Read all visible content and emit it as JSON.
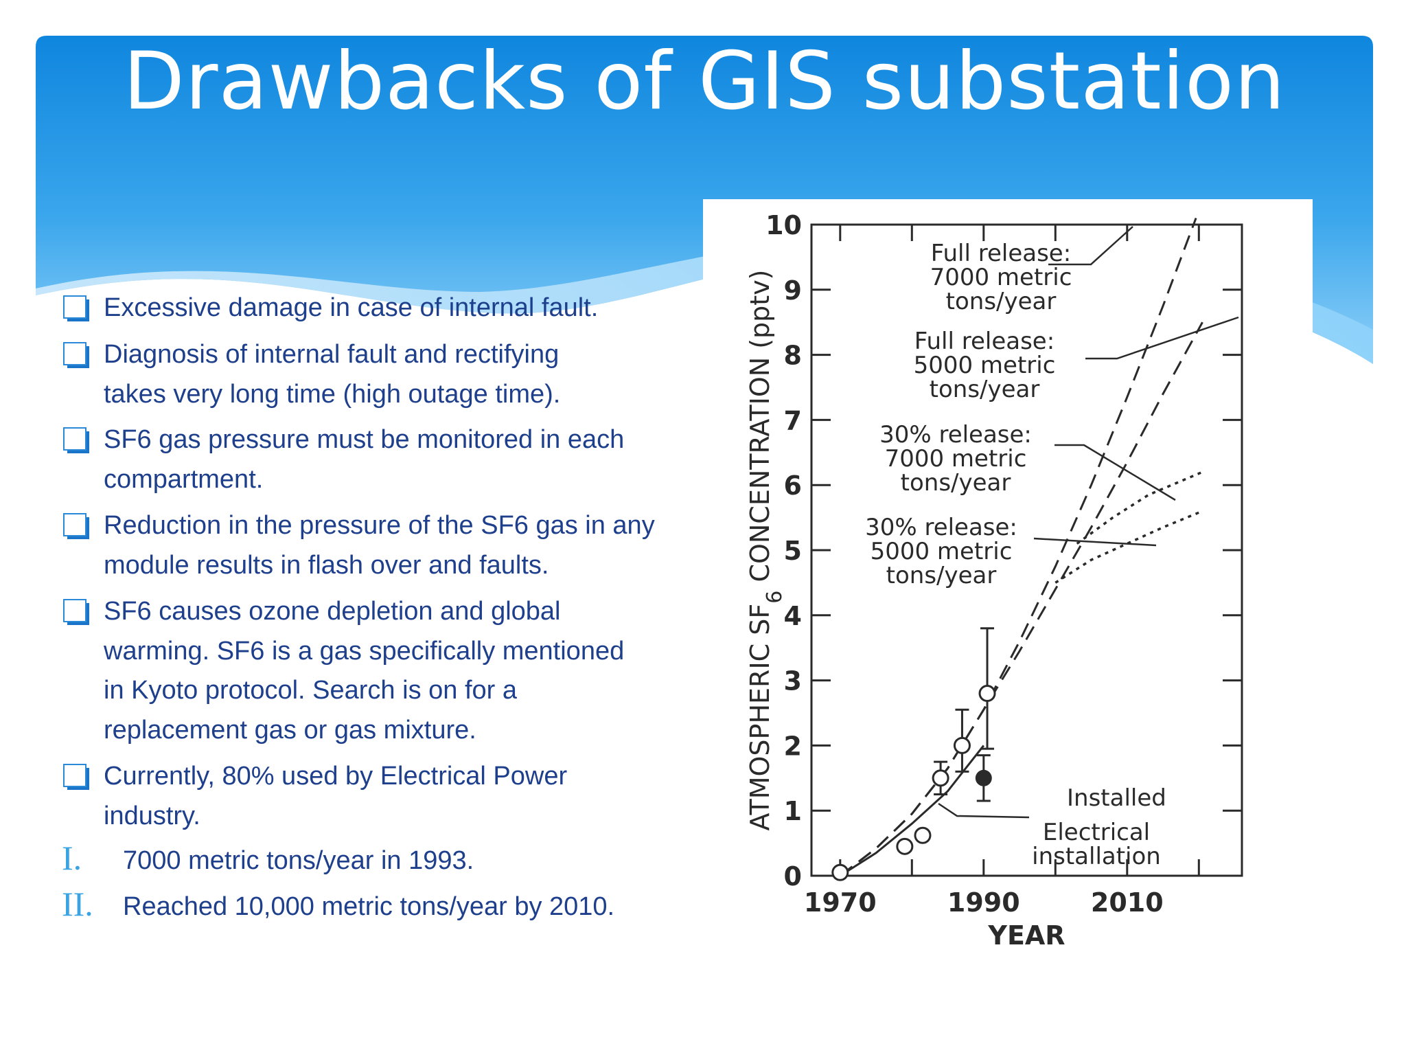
{
  "slide": {
    "title": "Drawbacks of GIS substation",
    "bullets": [
      "Excessive damage in case of internal fault.",
      "Diagnosis of internal fault and rectifying takes very long time (high outage time).",
      "SF6 gas pressure must be monitored in each compartment.",
      "Reduction in the pressure of the SF6 gas in any module results in flash over and faults.",
      "SF6 causes ozone depletion and global warming. SF6 is a gas specifically mentioned in Kyoto protocol. Search is on for a replacement gas or gas mixture.",
      "Currently, 80% used by Electrical  Power industry."
    ],
    "numbered": [
      {
        "num": "I.",
        "text": "7000 metric tons/year in 1993."
      },
      {
        "num": "II.",
        "text": "Reached 10,000 metric tons/year by 2010."
      }
    ],
    "colors": {
      "header": "#1a8fe0",
      "text": "#1e3f8c",
      "accent": "#3aa3e2"
    },
    "bullet_icon": "checkbox-square-icon"
  },
  "chart_data": {
    "type": "line",
    "ylabel": "ATMOSPHERIC SF",
    "ylabel_sub": "6",
    "ylabel_tail": " CONCENTRATION (pptv)",
    "xlabel": "YEAR",
    "xlim": [
      1966,
      2026
    ],
    "ylim": [
      0,
      10
    ],
    "xticks": [
      1970,
      1990,
      2010
    ],
    "yticks": [
      0,
      1,
      2,
      3,
      4,
      5,
      6,
      7,
      8,
      9,
      10
    ],
    "series": [
      {
        "style": "dashed",
        "x": [
          1970,
          1975,
          1980,
          1985,
          1990,
          1995,
          2000,
          2005,
          2010,
          2015,
          2019.6
        ],
        "values": [
          0,
          0.42,
          0.95,
          1.65,
          2.55,
          3.6,
          4.75,
          6.0,
          7.35,
          8.75,
          10.1
        ]
      },
      {
        "style": "dashed",
        "x": [
          1970,
          1975,
          1980,
          1985,
          1990,
          1995,
          2000,
          2005,
          2010,
          2015,
          2020.5
        ],
        "values": [
          0,
          0.42,
          0.95,
          1.65,
          2.55,
          3.45,
          4.4,
          5.35,
          6.35,
          7.4,
          8.5
        ]
      },
      {
        "style": "dotted",
        "x": [
          2003,
          2008,
          2013,
          2020.5
        ],
        "values": [
          5.1,
          5.5,
          5.85,
          6.2
        ]
      },
      {
        "style": "dotted",
        "x": [
          2000,
          2005,
          2010,
          2015,
          2020.5
        ],
        "values": [
          4.5,
          4.85,
          5.1,
          5.35,
          5.6
        ]
      },
      {
        "style": "solid",
        "x": [
          1970,
          1975,
          1980,
          1985,
          1988,
          1990
        ],
        "values": [
          0,
          0.35,
          0.8,
          1.3,
          1.72,
          2.0
        ]
      }
    ],
    "points_open": [
      {
        "x": 1970,
        "y": 0.05
      },
      {
        "x": 1979,
        "y": 0.45
      },
      {
        "x": 1981.5,
        "y": 0.62
      },
      {
        "x": 1984,
        "y": 1.5
      },
      {
        "x": 1987,
        "y": 2.0
      },
      {
        "x": 1990.5,
        "y": 2.8
      }
    ],
    "errorbars": [
      {
        "x": 1984,
        "low": 1.25,
        "high": 1.75
      },
      {
        "x": 1987,
        "low": 1.6,
        "high": 2.55
      },
      {
        "x": 1990.5,
        "low": 1.95,
        "high": 3.8
      },
      {
        "x": 1990,
        "low": 1.15,
        "high": 1.85
      }
    ],
    "point_filled": {
      "x": 1990,
      "y": 1.5
    },
    "annotations": [
      {
        "lines": [
          "Full release:",
          "7000 metric",
          "tons/year"
        ]
      },
      {
        "lines": [
          "Full release:",
          "5000 metric",
          "tons/year"
        ]
      },
      {
        "lines": [
          "30% release:",
          "7000 metric",
          "tons/year"
        ]
      },
      {
        "lines": [
          "30% release:",
          "5000 metric",
          "tons/year"
        ]
      },
      {
        "lines": [
          "Installed"
        ]
      },
      {
        "lines": [
          "Electrical",
          "installation"
        ]
      }
    ]
  }
}
